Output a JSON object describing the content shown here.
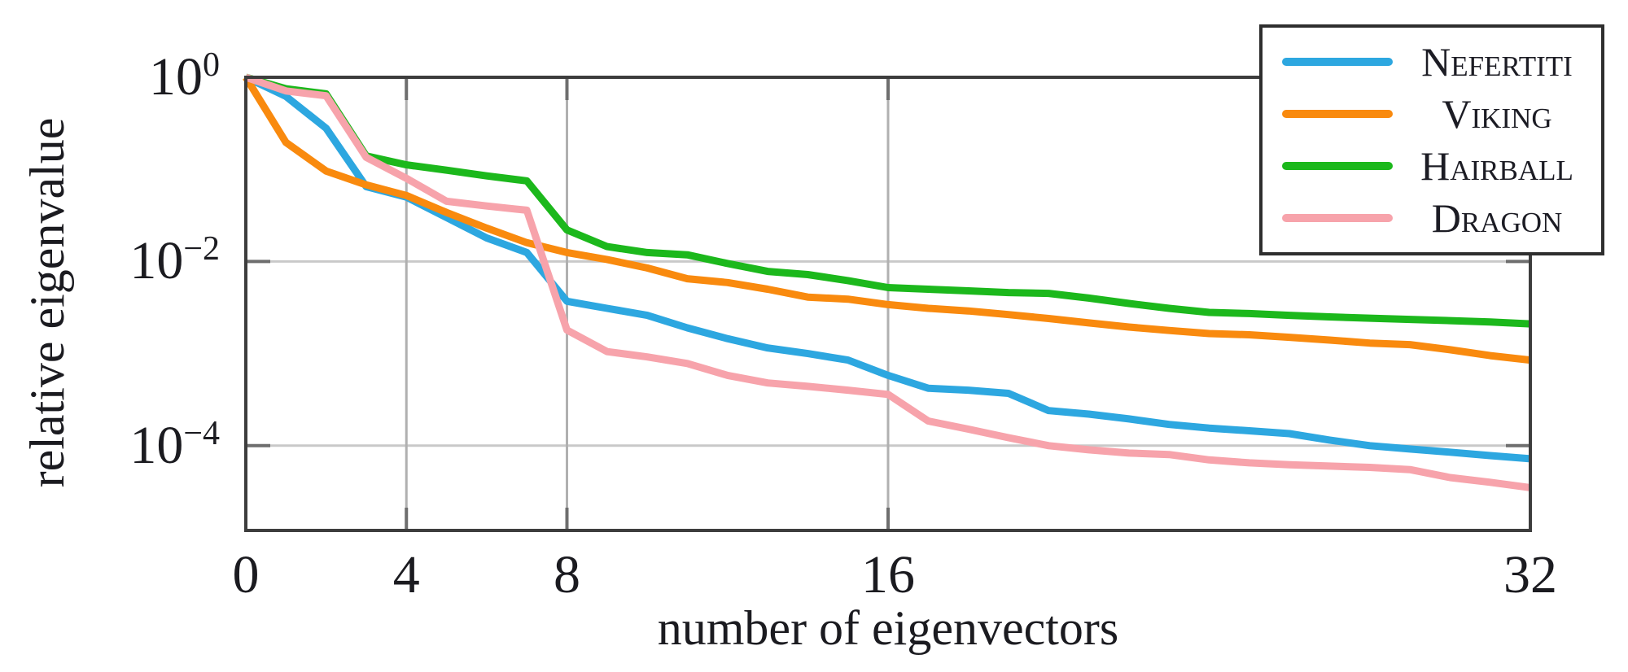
{
  "chart_data": {
    "type": "line",
    "title": "",
    "xlabel": "number of eigenvectors",
    "ylabel": "relative eigenvalue",
    "x_scale": "linear",
    "y_scale": "log",
    "xlim": [
      0,
      32
    ],
    "ylim": [
      1.2e-05,
      1.0
    ],
    "grid": "on",
    "legend_position": "top-right",
    "x_ticks": {
      "values": [
        0,
        4,
        8,
        16,
        32
      ],
      "labels": [
        "0",
        "4",
        "8",
        "16",
        "32"
      ],
      "gridline_values": [
        4,
        8,
        16
      ]
    },
    "y_ticks": {
      "values": [
        1,
        0.01,
        0.0001
      ],
      "labels": [
        {
          "base": "10",
          "exp": "0"
        },
        {
          "base": "10",
          "exp": "−2"
        },
        {
          "base": "10",
          "exp": "−4"
        }
      ],
      "gridline_values": [
        0.01,
        0.0001
      ]
    },
    "x": [
      0,
      1,
      2,
      3,
      4,
      5,
      6,
      7,
      8,
      9,
      10,
      11,
      12,
      13,
      14,
      15,
      16,
      17,
      18,
      19,
      20,
      21,
      22,
      23,
      24,
      25,
      26,
      27,
      28,
      29,
      30,
      31,
      32
    ],
    "series": [
      {
        "name": "Nefertiti",
        "color": "#2da7e0",
        "values": [
          1.0,
          0.62,
          0.28,
          0.065,
          0.05,
          0.03,
          0.018,
          0.0125,
          0.0037,
          0.0031,
          0.0026,
          0.0019,
          0.00145,
          0.00115,
          0.001,
          0.00085,
          0.00058,
          0.00042,
          0.0004,
          0.00037,
          0.00024,
          0.00022,
          0.000195,
          0.00017,
          0.000155,
          0.000145,
          0.000135,
          0.000115,
          0.0001,
          9.2e-05,
          8.5e-05,
          7.8e-05,
          7.2e-05
        ]
      },
      {
        "name": "Viking",
        "color": "#f98a0e",
        "values": [
          1.0,
          0.196,
          0.096,
          0.068,
          0.052,
          0.034,
          0.023,
          0.016,
          0.0125,
          0.0105,
          0.0085,
          0.0065,
          0.0059,
          0.005,
          0.0041,
          0.0039,
          0.0034,
          0.0031,
          0.0029,
          0.00265,
          0.0024,
          0.00215,
          0.00194,
          0.00178,
          0.00165,
          0.0016,
          0.0015,
          0.0014,
          0.0013,
          0.00125,
          0.0011,
          0.00095,
          0.00085
        ]
      },
      {
        "name": "Hairball",
        "color": "#1cb81c",
        "values": [
          1.0,
          0.75,
          0.66,
          0.14,
          0.112,
          0.098,
          0.085,
          0.075,
          0.022,
          0.0145,
          0.0125,
          0.0118,
          0.0095,
          0.0078,
          0.0072,
          0.0062,
          0.0052,
          0.005,
          0.0048,
          0.0046,
          0.0045,
          0.004,
          0.0035,
          0.0031,
          0.0028,
          0.00272,
          0.0026,
          0.0025,
          0.00242,
          0.00235,
          0.00228,
          0.0022,
          0.0021
        ]
      },
      {
        "name": "Dragon",
        "color": "#f7a3ab",
        "values": [
          1.0,
          0.71,
          0.63,
          0.135,
          0.08,
          0.045,
          0.04,
          0.036,
          0.0018,
          0.00105,
          0.00092,
          0.00078,
          0.00058,
          0.00048,
          0.00044,
          0.0004,
          0.00036,
          0.000185,
          0.000151,
          0.000122,
          0.0001,
          9e-05,
          8.3e-05,
          8e-05,
          7e-05,
          6.5e-05,
          6.2e-05,
          6e-05,
          5.8e-05,
          5.5e-05,
          4.5e-05,
          4e-05,
          3.5e-05
        ]
      }
    ],
    "style_colors": {
      "axis_frame": "#3d3d3d",
      "grid_vertical": "#b0b0b0",
      "grid_horizontal": "#c9c9c9",
      "tick_stub": "#6e6e6e",
      "text": "#1b1b20"
    }
  }
}
